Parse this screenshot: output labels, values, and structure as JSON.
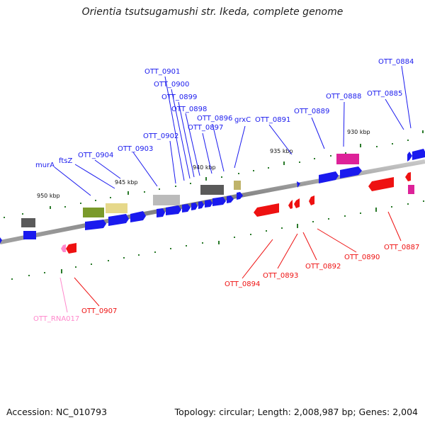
{
  "title": "Orientia tsutsugamushi str. Ikeda, complete genome",
  "accession": "Accession: NC_010793",
  "summary": "Topology: circular; Length: 2,008,987 bp; Genes: 2,004",
  "colors": {
    "forward": "#1a1aee",
    "reverse": "#ee1111",
    "rna": "#ff88cc",
    "magenta": "#dd2299",
    "gray": "#666666",
    "olive": "#7a9a2a",
    "khaki": "#e6d88a",
    "lightgray": "#bbbbbb",
    "tan": "#bfb36a",
    "tick": "#2a7a2a",
    "backbone": "#888888"
  },
  "ticks": [
    "950 kbp",
    "945 kbp",
    "940 kbp",
    "935 kbp",
    "930 kbp"
  ],
  "labels": {
    "forward": [
      "OTT_0901",
      "OTT_0900",
      "OTT_0899",
      "OTT_0898",
      "OTT_0896",
      "OTT_0897",
      "grxC",
      "OTT_0891",
      "OTT_0889",
      "OTT_0888",
      "OTT_0885",
      "OTT_0884",
      "OTT_0902",
      "OTT_0903",
      "OTT_0904",
      "ftsZ",
      "murA"
    ],
    "reverse": [
      "OTT_0887",
      "OTT_0890",
      "OTT_0892",
      "OTT_0893",
      "OTT_0894",
      "OTT_0907"
    ],
    "rna": [
      "OTT_RNA017"
    ]
  }
}
